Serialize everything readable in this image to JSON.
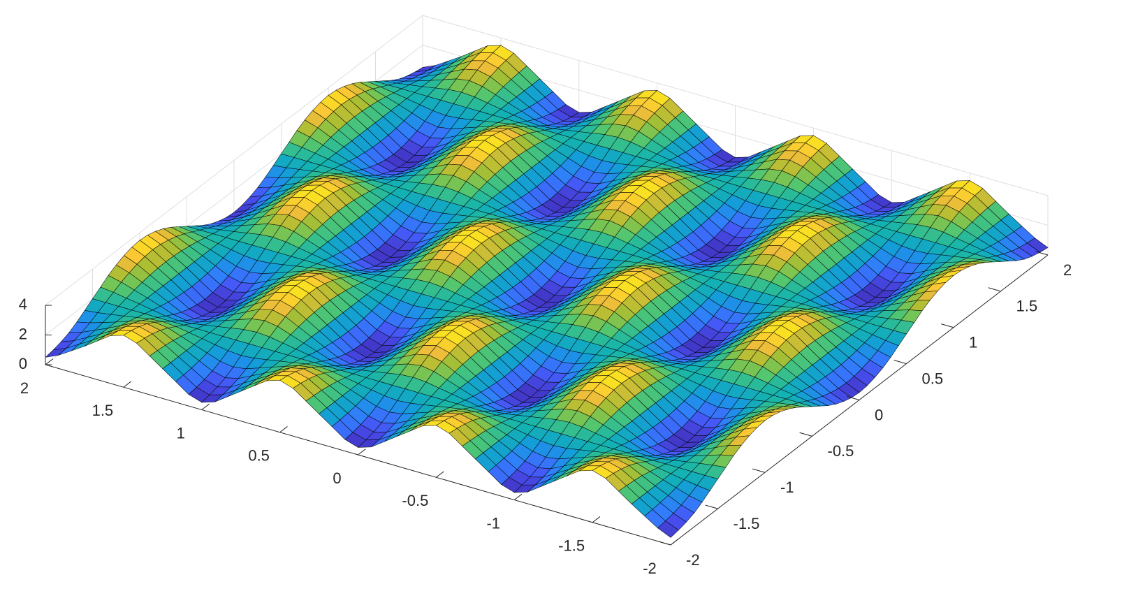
{
  "chart_data": {
    "type": "surface",
    "x": [
      -2,
      -1.75,
      -1.5,
      -1.25,
      -1,
      -0.75,
      -0.5,
      -0.25,
      0,
      0.25,
      0.5,
      0.75,
      1,
      1.25,
      1.5,
      1.75,
      2
    ],
    "y": [
      -2,
      -1.75,
      -1.5,
      -1.25,
      -1,
      -0.75,
      -0.5,
      -0.25,
      0,
      0.25,
      0.5,
      0.75,
      1,
      1.25,
      1.5,
      1.75,
      2
    ],
    "z": [
      [
        0.5,
        2,
        3.5,
        2,
        0.5,
        2,
        3.5,
        2,
        0.5,
        2,
        3.5,
        2,
        0.5,
        2,
        3.5,
        2,
        0.5
      ],
      [
        0.94,
        2,
        3.06,
        2,
        0.94,
        2,
        3.06,
        2,
        0.94,
        2,
        3.06,
        2,
        0.94,
        2,
        3.06,
        2,
        0.94
      ],
      [
        2,
        2,
        2,
        2,
        2,
        2,
        2,
        2,
        2,
        2,
        2,
        2,
        2,
        2,
        2,
        2,
        2
      ],
      [
        3.06,
        2,
        0.94,
        2,
        3.06,
        2,
        0.94,
        2,
        3.06,
        2,
        0.94,
        2,
        3.06,
        2,
        0.94,
        2,
        3.06
      ],
      [
        3.5,
        2,
        0.5,
        2,
        3.5,
        2,
        0.5,
        2,
        3.5,
        2,
        0.5,
        2,
        3.5,
        2,
        0.5,
        2,
        3.5
      ],
      [
        3.06,
        2,
        0.94,
        2,
        3.06,
        2,
        0.94,
        2,
        3.06,
        2,
        0.94,
        2,
        3.06,
        2,
        0.94,
        2,
        3.06
      ],
      [
        2,
        2,
        2,
        2,
        2,
        2,
        2,
        2,
        2,
        2,
        2,
        2,
        2,
        2,
        2,
        2,
        2
      ],
      [
        0.94,
        2,
        3.06,
        2,
        0.94,
        2,
        3.06,
        2,
        0.94,
        2,
        3.06,
        2,
        0.94,
        2,
        3.06,
        2,
        0.94
      ],
      [
        0.5,
        2,
        3.5,
        2,
        0.5,
        2,
        3.5,
        2,
        0.5,
        2,
        3.5,
        2,
        0.5,
        2,
        3.5,
        2,
        0.5
      ],
      [
        0.94,
        2,
        3.06,
        2,
        0.94,
        2,
        3.06,
        2,
        0.94,
        2,
        3.06,
        2,
        0.94,
        2,
        3.06,
        2,
        0.94
      ],
      [
        2,
        2,
        2,
        2,
        2,
        2,
        2,
        2,
        2,
        2,
        2,
        2,
        2,
        2,
        2,
        2,
        2
      ],
      [
        3.06,
        2,
        0.94,
        2,
        3.06,
        2,
        0.94,
        2,
        3.06,
        2,
        0.94,
        2,
        3.06,
        2,
        0.94,
        2,
        3.06
      ],
      [
        3.5,
        2,
        0.5,
        2,
        3.5,
        2,
        0.5,
        2,
        3.5,
        2,
        0.5,
        2,
        3.5,
        2,
        0.5,
        2,
        3.5
      ],
      [
        3.06,
        2,
        0.94,
        2,
        3.06,
        2,
        0.94,
        2,
        3.06,
        2,
        0.94,
        2,
        3.06,
        2,
        0.94,
        2,
        3.06
      ],
      [
        2,
        2,
        2,
        2,
        2,
        2,
        2,
        2,
        2,
        2,
        2,
        2,
        2,
        2,
        2,
        2,
        2
      ],
      [
        0.94,
        2,
        3.06,
        2,
        0.94,
        2,
        3.06,
        2,
        0.94,
        2,
        3.06,
        2,
        0.94,
        2,
        3.06,
        2,
        0.94
      ],
      [
        0.5,
        2,
        3.5,
        2,
        0.5,
        2,
        3.5,
        2,
        0.5,
        2,
        3.5,
        2,
        0.5,
        2,
        3.5,
        2,
        0.5
      ]
    ],
    "xlim": [
      -2,
      2
    ],
    "ylim": [
      -2,
      2
    ],
    "zlim": [
      0,
      4
    ],
    "xticks": [
      -2,
      -1.5,
      -1,
      -0.5,
      0,
      0.5,
      1,
      1.5,
      2
    ],
    "yticks": [
      -2,
      -1.5,
      -1,
      -0.5,
      0,
      0.5,
      1,
      1.5,
      2
    ],
    "zticks": [
      0,
      2,
      4
    ],
    "grid": true,
    "colormap": "parula",
    "edge_color": "#000000"
  }
}
